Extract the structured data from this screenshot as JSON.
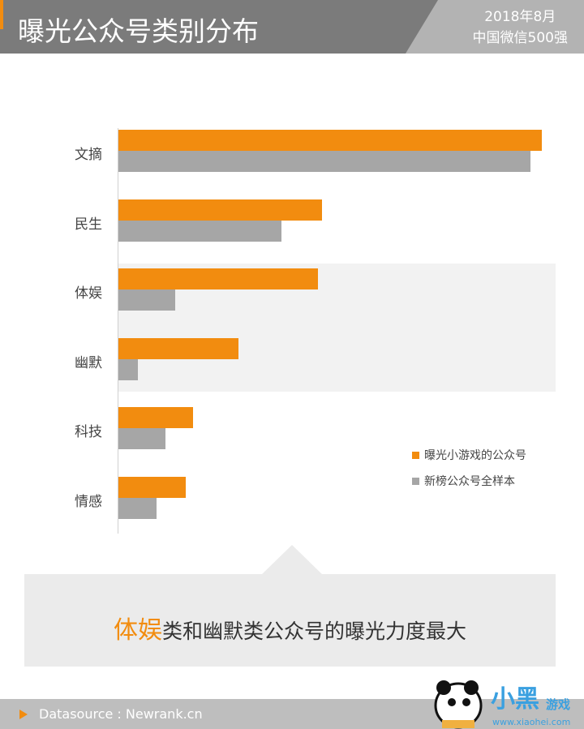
{
  "header": {
    "title": "曝光公众号类别分布",
    "date": "2018年8月",
    "scope": "中国微信500强"
  },
  "chart_data": {
    "type": "bar",
    "orientation": "horizontal",
    "title": "曝光公众号类别分布",
    "categories": [
      "文摘",
      "民生",
      "体娱",
      "幽默",
      "科技",
      "情感"
    ],
    "series": [
      {
        "name": "曝光小游戏的公众号",
        "color": "#f28c0f",
        "values": [
          523,
          252,
          247,
          149,
          93,
          84
        ]
      },
      {
        "name": "新榜公众号全样本",
        "color": "#a6a6a6",
        "values": [
          509,
          202,
          71,
          25,
          59,
          48
        ]
      }
    ],
    "xlim": [
      0,
      523
    ],
    "legend": "bottom-right",
    "note": "relative values (no axis shown)"
  },
  "callout": {
    "highlight": "体娱",
    "text": "类和幽默类公众号的曝光力度最大"
  },
  "footer": {
    "source": "Datasource : Newrank.cn"
  },
  "logo": {
    "text": "小黑游戏",
    "url": "www.xiaohei.com"
  }
}
